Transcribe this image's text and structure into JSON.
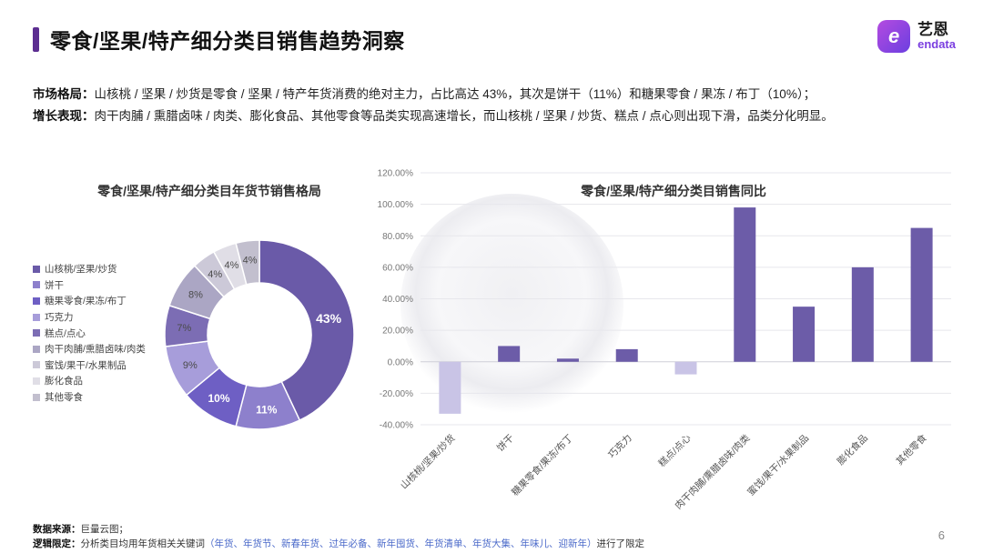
{
  "page": {
    "number": "6"
  },
  "header": {
    "title": "零食/坚果/特产细分类目销售趋势洞察"
  },
  "logo": {
    "mark": "e",
    "cn": "艺恩",
    "en": "endata"
  },
  "colors": {
    "accent": "#5C2E91",
    "bar_positive": "#6C5CA8",
    "bar_negative": "#C9C4E6",
    "link": "#4A69C9"
  },
  "summary": {
    "line1_label": "市场格局：",
    "line1_text": "山核桃 / 坚果 / 炒货是零食 / 坚果 / 特产年货消费的绝对主力，占比高达 43%，其次是饼干（11%）和糖果零食 / 果冻 / 布丁（10%）；",
    "line2_label": "增长表现：",
    "line2_text": "肉干肉脯 / 熏腊卤味 / 肉类、膨化食品、其他零食等品类实现高速增长，而山核桃 / 坚果 / 炒货、糕点 / 点心则出现下滑，品类分化明显。"
  },
  "chart_data": [
    {
      "type": "pie",
      "title": "零食/坚果/特产细分类目年货节销售格局",
      "categories": [
        "山核桃/坚果/炒货",
        "饼干",
        "糖果零食/果冻/布丁",
        "巧克力",
        "糕点/点心",
        "肉干肉脯/熏腊卤味/肉类",
        "蜜饯/果干/水果制品",
        "膨化食品",
        "其他零食"
      ],
      "values": [
        43,
        11,
        10,
        9,
        7,
        8,
        4,
        4,
        4
      ],
      "labels": [
        "43%",
        "11%",
        "10%",
        "9%",
        "7%",
        "8%",
        "4%",
        "4%",
        "4%"
      ],
      "colors": [
        "#6A5AA8",
        "#8D80CC",
        "#6E5FC4",
        "#A79DDA",
        "#7C6DB4",
        "#ABA6C4",
        "#CCC9D8",
        "#E0DEE6",
        "#C2BFCE"
      ],
      "legend_position": "left",
      "donut": true
    },
    {
      "type": "bar",
      "title": "零食/坚果/特产细分类目销售同比",
      "categories": [
        "山核桃/坚果/炒货",
        "饼干",
        "糖果零食/果冻/布丁",
        "巧克力",
        "糕点/点心",
        "肉干肉脯/熏腊卤味/肉类",
        "蜜饯/果干/水果制品",
        "膨化食品",
        "其他零食"
      ],
      "values": [
        -33,
        10,
        2,
        8,
        -8,
        98,
        35,
        60,
        85
      ],
      "ylim": [
        -40,
        120
      ],
      "ytick_step": 20,
      "ytick_labels": [
        "120.00%",
        "100.00%",
        "80.00%",
        "60.00%",
        "40.00%",
        "20.00%",
        "0.00%",
        "-20.00%",
        "-40.00%"
      ],
      "positive_color": "#6C5CA8",
      "negative_color": "#C9C4E6",
      "grid": true,
      "xlabel": "",
      "ylabel": ""
    }
  ],
  "footer": {
    "line1": {
      "label": "数据来源：",
      "text": "巨量云图；"
    },
    "line2": {
      "label": "逻辑限定：",
      "pre": "分析类目均用年货相关关键词",
      "keywords": "（年货、年货节、新春年货、过年必备、新年囤货、年货清单、年货大集、年味儿、迎新年）",
      "post": "进行了限定"
    }
  }
}
